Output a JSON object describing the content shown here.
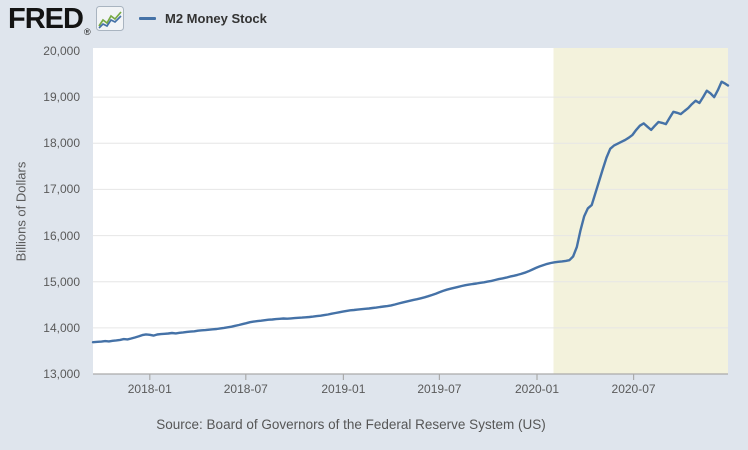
{
  "header": {
    "logo_text": "FRED",
    "logo_registered": "®",
    "legend": {
      "label": "M2 Money Stock",
      "line_color": "#4572a7"
    }
  },
  "footer": {
    "source": "Source: Board of Governors of the Federal Reserve System (US)"
  },
  "colors": {
    "background": "#dfe5ed",
    "plot_background": "#ffffff",
    "gridline": "#e6e6e6",
    "axis_line": "#aaaaaa",
    "tick_text": "#5a5a5a",
    "legend_text": "#333333",
    "source_text": "#565656",
    "recession_band": "#f3f2dc",
    "line": "#4572a7"
  },
  "chart_data": {
    "type": "line",
    "title": "M2 Money Stock",
    "xlabel": "",
    "ylabel": "Billions of Dollars",
    "grid": true,
    "line_color": "#4572a7",
    "legend_position": "top-left",
    "x_axis": {
      "domain": [
        "2017-09-16",
        "2020-12-26"
      ],
      "ticks": [
        {
          "date": "2018-01-01",
          "label": "2018-01"
        },
        {
          "date": "2018-07-01",
          "label": "2018-07"
        },
        {
          "date": "2019-01-01",
          "label": "2019-01"
        },
        {
          "date": "2019-07-01",
          "label": "2019-07"
        },
        {
          "date": "2020-01-01",
          "label": "2020-01"
        },
        {
          "date": "2020-07-01",
          "label": "2020-07"
        }
      ]
    },
    "y_axis": {
      "range": [
        13000,
        20000
      ],
      "ticks": [
        {
          "value": 13000,
          "label": "13,000"
        },
        {
          "value": 14000,
          "label": "14,000"
        },
        {
          "value": 15000,
          "label": "15,000"
        },
        {
          "value": 16000,
          "label": "16,000"
        },
        {
          "value": 17000,
          "label": "17,000"
        },
        {
          "value": 18000,
          "label": "18,000"
        },
        {
          "value": 19000,
          "label": "19,000"
        },
        {
          "value": 20000,
          "label": "20,000"
        }
      ]
    },
    "recession_shading": {
      "start": "2020-02-01",
      "end": "2020-12-26",
      "color": "#f3f2dc"
    },
    "series": [
      {
        "name": "M2 Money Stock",
        "units": "Billions of Dollars",
        "points": [
          [
            "2017-09-16",
            13690
          ],
          [
            "2017-09-25",
            13698
          ],
          [
            "2017-10-02",
            13702
          ],
          [
            "2017-10-09",
            13712
          ],
          [
            "2017-10-16",
            13706
          ],
          [
            "2017-10-23",
            13720
          ],
          [
            "2017-10-30",
            13728
          ],
          [
            "2017-11-06",
            13738
          ],
          [
            "2017-11-13",
            13756
          ],
          [
            "2017-11-20",
            13750
          ],
          [
            "2017-11-27",
            13770
          ],
          [
            "2017-12-04",
            13792
          ],
          [
            "2017-12-11",
            13815
          ],
          [
            "2017-12-18",
            13842
          ],
          [
            "2017-12-25",
            13858
          ],
          [
            "2018-01-01",
            13850
          ],
          [
            "2018-01-08",
            13832
          ],
          [
            "2018-01-15",
            13855
          ],
          [
            "2018-01-22",
            13865
          ],
          [
            "2018-01-29",
            13872
          ],
          [
            "2018-02-05",
            13878
          ],
          [
            "2018-02-12",
            13888
          ],
          [
            "2018-02-19",
            13880
          ],
          [
            "2018-02-26",
            13892
          ],
          [
            "2018-03-05",
            13902
          ],
          [
            "2018-03-12",
            13912
          ],
          [
            "2018-03-19",
            13918
          ],
          [
            "2018-03-26",
            13926
          ],
          [
            "2018-04-02",
            13938
          ],
          [
            "2018-04-09",
            13946
          ],
          [
            "2018-04-16",
            13952
          ],
          [
            "2018-04-23",
            13960
          ],
          [
            "2018-04-30",
            13968
          ],
          [
            "2018-05-07",
            13976
          ],
          [
            "2018-05-14",
            13988
          ],
          [
            "2018-05-21",
            13998
          ],
          [
            "2018-05-28",
            14012
          ],
          [
            "2018-06-04",
            14026
          ],
          [
            "2018-06-11",
            14045
          ],
          [
            "2018-06-18",
            14062
          ],
          [
            "2018-06-25",
            14082
          ],
          [
            "2018-07-02",
            14102
          ],
          [
            "2018-07-09",
            14122
          ],
          [
            "2018-07-16",
            14136
          ],
          [
            "2018-07-23",
            14146
          ],
          [
            "2018-07-30",
            14156
          ],
          [
            "2018-08-06",
            14166
          ],
          [
            "2018-08-13",
            14176
          ],
          [
            "2018-08-20",
            14182
          ],
          [
            "2018-08-27",
            14190
          ],
          [
            "2018-09-03",
            14196
          ],
          [
            "2018-09-10",
            14202
          ],
          [
            "2018-09-17",
            14198
          ],
          [
            "2018-09-24",
            14206
          ],
          [
            "2018-10-01",
            14212
          ],
          [
            "2018-10-08",
            14218
          ],
          [
            "2018-10-15",
            14222
          ],
          [
            "2018-10-22",
            14228
          ],
          [
            "2018-10-29",
            14236
          ],
          [
            "2018-11-05",
            14244
          ],
          [
            "2018-11-12",
            14254
          ],
          [
            "2018-11-19",
            14264
          ],
          [
            "2018-11-26",
            14276
          ],
          [
            "2018-12-03",
            14290
          ],
          [
            "2018-12-10",
            14306
          ],
          [
            "2018-12-17",
            14322
          ],
          [
            "2018-12-24",
            14338
          ],
          [
            "2018-12-31",
            14352
          ],
          [
            "2019-01-07",
            14368
          ],
          [
            "2019-01-14",
            14380
          ],
          [
            "2019-01-21",
            14388
          ],
          [
            "2019-01-28",
            14396
          ],
          [
            "2019-02-04",
            14404
          ],
          [
            "2019-02-11",
            14412
          ],
          [
            "2019-02-18",
            14420
          ],
          [
            "2019-02-25",
            14430
          ],
          [
            "2019-03-04",
            14440
          ],
          [
            "2019-03-11",
            14452
          ],
          [
            "2019-03-18",
            14462
          ],
          [
            "2019-03-25",
            14472
          ],
          [
            "2019-04-01",
            14486
          ],
          [
            "2019-04-08",
            14506
          ],
          [
            "2019-04-15",
            14528
          ],
          [
            "2019-04-22",
            14548
          ],
          [
            "2019-04-29",
            14566
          ],
          [
            "2019-05-06",
            14586
          ],
          [
            "2019-05-13",
            14606
          ],
          [
            "2019-05-20",
            14622
          ],
          [
            "2019-05-27",
            14640
          ],
          [
            "2019-06-03",
            14662
          ],
          [
            "2019-06-10",
            14686
          ],
          [
            "2019-06-17",
            14712
          ],
          [
            "2019-06-24",
            14740
          ],
          [
            "2019-07-01",
            14770
          ],
          [
            "2019-07-08",
            14800
          ],
          [
            "2019-07-15",
            14826
          ],
          [
            "2019-07-22",
            14848
          ],
          [
            "2019-07-29",
            14868
          ],
          [
            "2019-08-05",
            14888
          ],
          [
            "2019-08-12",
            14908
          ],
          [
            "2019-08-19",
            14924
          ],
          [
            "2019-08-26",
            14938
          ],
          [
            "2019-09-02",
            14950
          ],
          [
            "2019-09-09",
            14962
          ],
          [
            "2019-09-16",
            14976
          ],
          [
            "2019-09-23",
            14988
          ],
          [
            "2019-09-30",
            15002
          ],
          [
            "2019-10-07",
            15018
          ],
          [
            "2019-10-14",
            15038
          ],
          [
            "2019-10-21",
            15056
          ],
          [
            "2019-10-28",
            15072
          ],
          [
            "2019-11-04",
            15090
          ],
          [
            "2019-11-11",
            15110
          ],
          [
            "2019-11-18",
            15128
          ],
          [
            "2019-11-25",
            15148
          ],
          [
            "2019-12-02",
            15170
          ],
          [
            "2019-12-09",
            15196
          ],
          [
            "2019-12-16",
            15226
          ],
          [
            "2019-12-23",
            15262
          ],
          [
            "2019-12-30",
            15300
          ],
          [
            "2020-01-06",
            15332
          ],
          [
            "2020-01-13",
            15360
          ],
          [
            "2020-01-20",
            15386
          ],
          [
            "2020-01-27",
            15406
          ],
          [
            "2020-02-03",
            15420
          ],
          [
            "2020-02-10",
            15432
          ],
          [
            "2020-02-17",
            15440
          ],
          [
            "2020-02-24",
            15450
          ],
          [
            "2020-03-02",
            15466
          ],
          [
            "2020-03-09",
            15546
          ],
          [
            "2020-03-16",
            15750
          ],
          [
            "2020-03-23",
            16115
          ],
          [
            "2020-03-30",
            16420
          ],
          [
            "2020-04-06",
            16590
          ],
          [
            "2020-04-13",
            16660
          ],
          [
            "2020-04-20",
            16920
          ],
          [
            "2020-04-27",
            17180
          ],
          [
            "2020-05-04",
            17440
          ],
          [
            "2020-05-11",
            17690
          ],
          [
            "2020-05-18",
            17880
          ],
          [
            "2020-05-25",
            17950
          ],
          [
            "2020-06-01",
            17992
          ],
          [
            "2020-06-08",
            18032
          ],
          [
            "2020-06-15",
            18072
          ],
          [
            "2020-06-22",
            18122
          ],
          [
            "2020-06-29",
            18182
          ],
          [
            "2020-07-06",
            18290
          ],
          [
            "2020-07-13",
            18382
          ],
          [
            "2020-07-20",
            18432
          ],
          [
            "2020-07-27",
            18360
          ],
          [
            "2020-08-03",
            18290
          ],
          [
            "2020-08-10",
            18380
          ],
          [
            "2020-08-17",
            18462
          ],
          [
            "2020-08-24",
            18442
          ],
          [
            "2020-08-31",
            18415
          ],
          [
            "2020-09-07",
            18550
          ],
          [
            "2020-09-14",
            18682
          ],
          [
            "2020-09-21",
            18660
          ],
          [
            "2020-09-28",
            18632
          ],
          [
            "2020-10-05",
            18700
          ],
          [
            "2020-10-12",
            18762
          ],
          [
            "2020-10-19",
            18850
          ],
          [
            "2020-10-26",
            18922
          ],
          [
            "2020-11-02",
            18872
          ],
          [
            "2020-11-09",
            19002
          ],
          [
            "2020-11-16",
            19140
          ],
          [
            "2020-11-23",
            19082
          ],
          [
            "2020-11-30",
            19000
          ],
          [
            "2020-12-07",
            19152
          ],
          [
            "2020-12-14",
            19335
          ],
          [
            "2020-12-21",
            19292
          ],
          [
            "2020-12-26",
            19252
          ]
        ]
      }
    ]
  }
}
